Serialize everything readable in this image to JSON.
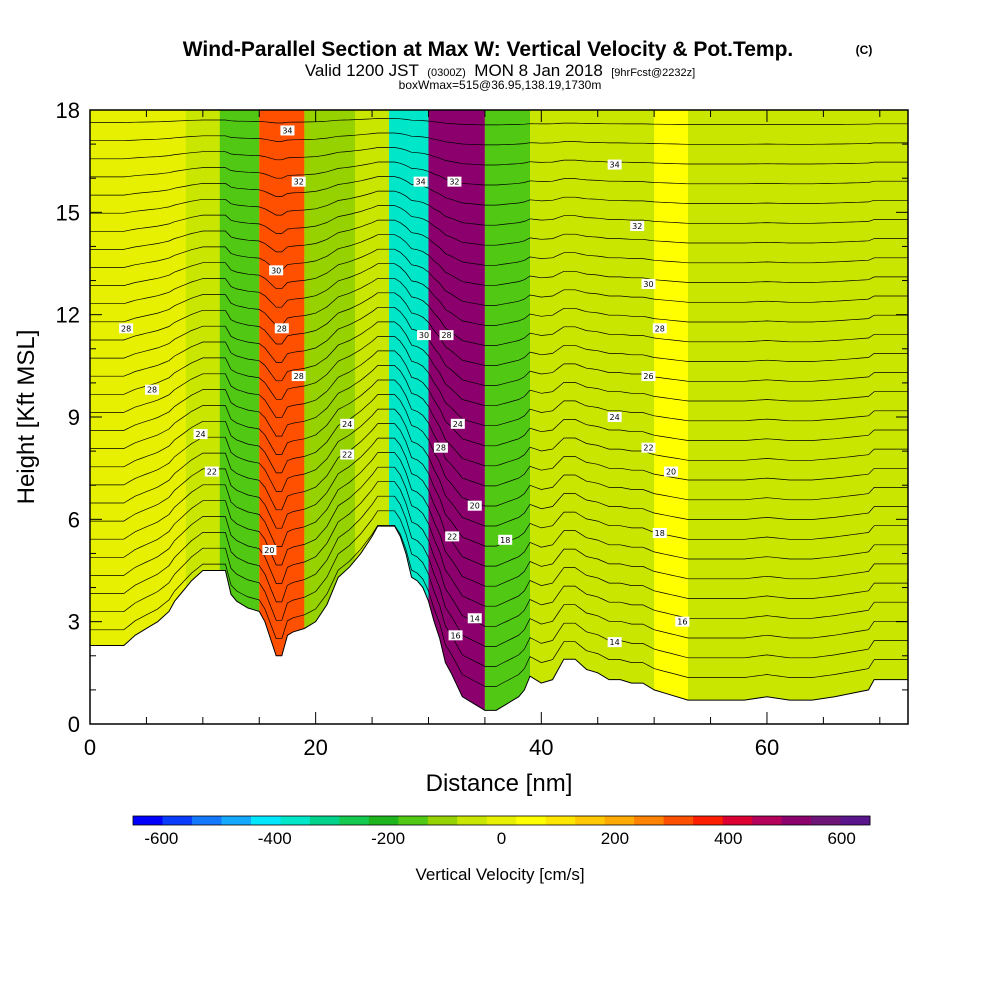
{
  "header": {
    "title": "Wind-Parallel Section at Max W: Vertical Velocity & Pot.Temp.",
    "copyright_mark": "(C)",
    "valid_prefix": "Valid 1200 JST",
    "valid_utc": "(0300Z)",
    "valid_date": "MON 8 Jan 2018",
    "forecast_info": "[9hrFcst@2232z]",
    "box_info": "boxWmax=515@36.95,138.19,1730m"
  },
  "chart_data": {
    "type": "heatmap",
    "xlabel": "Distance [nm]",
    "ylabel": "Height [Kft MSL]",
    "xlim": [
      0,
      72.5
    ],
    "ylim": [
      0,
      18
    ],
    "x_ticks": [
      "0",
      "20",
      "40",
      "60"
    ],
    "y_ticks": [
      "0",
      "3",
      "6",
      "9",
      "12",
      "15",
      "18"
    ],
    "colorbar": {
      "title": "Vertical Velocity [cm/s]",
      "range": [
        -650,
        650
      ],
      "ticks": [
        "-600",
        "-400",
        "-200",
        "0",
        "200",
        "400",
        "600"
      ],
      "colors": [
        "#0000ff",
        "#0a3cff",
        "#1478ff",
        "#14a8ff",
        "#00e6ff",
        "#00e6c8",
        "#00d28c",
        "#14c850",
        "#1eb41e",
        "#50c814",
        "#96d200",
        "#c8e600",
        "#e6f000",
        "#ffff00",
        "#ffe600",
        "#ffc800",
        "#ffaa00",
        "#ff8200",
        "#ff5000",
        "#ff1e00",
        "#dc0032",
        "#b4005a",
        "#8c006e",
        "#6e1478",
        "#5a148c"
      ]
    },
    "velocity_bands": [
      {
        "x": 0,
        "w": 8.5,
        "value": 0
      },
      {
        "x": 8.5,
        "w": 3,
        "value": -40
      },
      {
        "x": 11.5,
        "w": 3.5,
        "value": -150
      },
      {
        "x": 15,
        "w": 4,
        "value": 300
      },
      {
        "x": 19,
        "w": 4.5,
        "value": -120
      },
      {
        "x": 23.5,
        "w": 3,
        "value": -60
      },
      {
        "x": 26.5,
        "w": 3.5,
        "value": -380
      },
      {
        "x": 30,
        "w": 5,
        "value": 520
      },
      {
        "x": 35,
        "w": 4,
        "value": -160
      },
      {
        "x": 39,
        "w": 11,
        "value": -40
      },
      {
        "x": 50,
        "w": 3,
        "value": 30
      },
      {
        "x": 53,
        "w": 7,
        "value": -60
      },
      {
        "x": 60,
        "w": 12.5,
        "value": -30
      }
    ],
    "terrain": [
      [
        0,
        2.3
      ],
      [
        3,
        2.3
      ],
      [
        4,
        2.6
      ],
      [
        5,
        2.8
      ],
      [
        6,
        3.0
      ],
      [
        7,
        3.3
      ],
      [
        7.5,
        3.6
      ],
      [
        8,
        3.8
      ],
      [
        9,
        4.2
      ],
      [
        10,
        4.5
      ],
      [
        11,
        4.5
      ],
      [
        12,
        4.5
      ],
      [
        12.5,
        3.8
      ],
      [
        13,
        3.6
      ],
      [
        14,
        3.4
      ],
      [
        15,
        3.3
      ],
      [
        15.5,
        3.0
      ],
      [
        16,
        2.5
      ],
      [
        16.5,
        2.0
      ],
      [
        17,
        2.0
      ],
      [
        17.5,
        2.6
      ],
      [
        18,
        2.7
      ],
      [
        19,
        2.8
      ],
      [
        20,
        3.0
      ],
      [
        21,
        3.5
      ],
      [
        22,
        4.3
      ],
      [
        23,
        4.6
      ],
      [
        24,
        5.0
      ],
      [
        25,
        5.5
      ],
      [
        25.5,
        5.8
      ],
      [
        27,
        5.8
      ],
      [
        27.5,
        5.5
      ],
      [
        28,
        5.0
      ],
      [
        28.5,
        4.3
      ],
      [
        29,
        4.2
      ],
      [
        29.5,
        4.0
      ],
      [
        30,
        3.6
      ],
      [
        30.5,
        3.0
      ],
      [
        31,
        2.5
      ],
      [
        31.5,
        1.8
      ],
      [
        32,
        1.5
      ],
      [
        33,
        0.8
      ],
      [
        34,
        0.6
      ],
      [
        35,
        0.4
      ],
      [
        36,
        0.4
      ],
      [
        37,
        0.6
      ],
      [
        38,
        0.8
      ],
      [
        38.5,
        1.0
      ],
      [
        39,
        1.4
      ],
      [
        40,
        1.2
      ],
      [
        41,
        1.3
      ],
      [
        41.5,
        1.6
      ],
      [
        42,
        1.9
      ],
      [
        43,
        1.9
      ],
      [
        44,
        1.6
      ],
      [
        45,
        1.5
      ],
      [
        46,
        1.3
      ],
      [
        47,
        1.3
      ],
      [
        48,
        1.2
      ],
      [
        49,
        1.2
      ],
      [
        50,
        1.0
      ],
      [
        51,
        0.9
      ],
      [
        53,
        0.7
      ],
      [
        58,
        0.7
      ],
      [
        60,
        0.8
      ],
      [
        62,
        0.7
      ],
      [
        64,
        0.7
      ],
      [
        66,
        0.8
      ],
      [
        69,
        1.0
      ],
      [
        69.5,
        1.3
      ],
      [
        72.5,
        1.3
      ]
    ],
    "theta_labels": [
      {
        "text": "34",
        "x": 17.5,
        "y": 17.4
      },
      {
        "text": "32",
        "x": 18.5,
        "y": 15.9
      },
      {
        "text": "30",
        "x": 16.5,
        "y": 13.3
      },
      {
        "text": "28",
        "x": 17,
        "y": 11.6
      },
      {
        "text": "28",
        "x": 18.5,
        "y": 10.2
      },
      {
        "text": "28",
        "x": 3.2,
        "y": 11.6
      },
      {
        "text": "28",
        "x": 5.5,
        "y": 9.8
      },
      {
        "text": "24",
        "x": 9.8,
        "y": 8.5
      },
      {
        "text": "22",
        "x": 10.8,
        "y": 7.4
      },
      {
        "text": "24",
        "x": 22.8,
        "y": 8.8
      },
      {
        "text": "22",
        "x": 22.8,
        "y": 7.9
      },
      {
        "text": "20",
        "x": 15.9,
        "y": 5.1
      },
      {
        "text": "34",
        "x": 29.3,
        "y": 15.9
      },
      {
        "text": "32",
        "x": 32.3,
        "y": 15.9
      },
      {
        "text": "30",
        "x": 29.6,
        "y": 11.4
      },
      {
        "text": "28",
        "x": 31.6,
        "y": 11.4
      },
      {
        "text": "28",
        "x": 31.1,
        "y": 8.1
      },
      {
        "text": "24",
        "x": 32.6,
        "y": 8.8
      },
      {
        "text": "20",
        "x": 34.1,
        "y": 6.4
      },
      {
        "text": "22",
        "x": 32.1,
        "y": 5.5
      },
      {
        "text": "18",
        "x": 36.8,
        "y": 5.4
      },
      {
        "text": "16",
        "x": 32.4,
        "y": 2.6
      },
      {
        "text": "14",
        "x": 34.1,
        "y": 3.1
      },
      {
        "text": "34",
        "x": 46.5,
        "y": 16.4
      },
      {
        "text": "32",
        "x": 48.5,
        "y": 14.6
      },
      {
        "text": "30",
        "x": 49.5,
        "y": 12.9
      },
      {
        "text": "28",
        "x": 50.5,
        "y": 11.6
      },
      {
        "text": "26",
        "x": 49.5,
        "y": 10.2
      },
      {
        "text": "24",
        "x": 46.5,
        "y": 9.0
      },
      {
        "text": "22",
        "x": 49.5,
        "y": 8.1
      },
      {
        "text": "20",
        "x": 51.5,
        "y": 7.4
      },
      {
        "text": "18",
        "x": 50.5,
        "y": 5.6
      },
      {
        "text": "16",
        "x": 52.5,
        "y": 3.0
      },
      {
        "text": "14",
        "x": 46.5,
        "y": 2.4
      }
    ]
  }
}
